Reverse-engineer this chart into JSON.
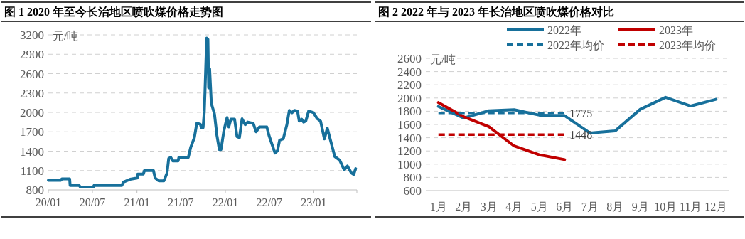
{
  "chart_data": [
    {
      "type": "line",
      "title": "图 1 2020 年至今长治地区喷吹煤价格走势图",
      "ylabel": "元/吨",
      "x": [
        "2020-01-01",
        "2020-02-22",
        "2020-02-26",
        "2020-03-29",
        "2020-03-31",
        "2020-05-07",
        "2020-05-12",
        "2020-07-05",
        "2020-07-08",
        "2020-10-31",
        "2020-11-05",
        "2020-12-04",
        "2021-01-02",
        "2021-01-04",
        "2021-01-27",
        "2021-02-01",
        "2021-03-10",
        "2021-03-17",
        "2021-04-01",
        "2021-04-22",
        "2021-05-05",
        "2021-05-12",
        "2021-05-20",
        "2021-05-29",
        "2021-06-20",
        "2021-06-23",
        "2021-08-01",
        "2021-08-11",
        "2021-08-26",
        "2021-09-05",
        "2021-09-19",
        "2021-09-24",
        "2021-10-01",
        "2021-10-06",
        "2021-10-09",
        "2021-10-16",
        "2021-10-21",
        "2021-10-24",
        "2021-10-28",
        "2021-11-04",
        "2021-11-17",
        "2021-11-27",
        "2021-12-07",
        "2021-12-14",
        "2021-12-26",
        "2022-01-08",
        "2022-01-15",
        "2022-01-24",
        "2022-02-08",
        "2022-02-18",
        "2022-02-28",
        "2022-03-11",
        "2022-03-24",
        "2022-04-03",
        "2022-04-26",
        "2022-05-08",
        "2022-05-22",
        "2022-06-21",
        "2022-06-30",
        "2022-07-13",
        "2022-07-25",
        "2022-08-04",
        "2022-08-13",
        "2022-08-28",
        "2022-09-12",
        "2022-09-22",
        "2022-10-03",
        "2022-10-13",
        "2022-10-26",
        "2022-11-02",
        "2022-11-12",
        "2022-11-20",
        "2022-11-29",
        "2022-12-11",
        "2022-12-31",
        "2023-01-15",
        "2023-01-29",
        "2023-02-14",
        "2023-02-26",
        "2023-03-07",
        "2023-03-29",
        "2023-04-18",
        "2023-05-07",
        "2023-05-20",
        "2023-06-06",
        "2023-06-15",
        "2023-06-23"
      ],
      "series": [
        {
          "color": "#17709b",
          "values": [
            950,
            950,
            970,
            970,
            870,
            870,
            845,
            845,
            870,
            870,
            920,
            965,
            985,
            1045,
            1045,
            1100,
            1100,
            985,
            940,
            940,
            1060,
            1285,
            1305,
            1250,
            1250,
            1305,
            1305,
            1460,
            1610,
            1830,
            1820,
            1765,
            1765,
            2015,
            2345,
            3150,
            3130,
            2380,
            2675,
            2140,
            1975,
            1645,
            1425,
            1425,
            1720,
            1920,
            1775,
            1895,
            1895,
            1625,
            1610,
            1900,
            1810,
            1850,
            1830,
            1700,
            1775,
            1775,
            1645,
            1500,
            1370,
            1405,
            1570,
            1590,
            1810,
            2030,
            1995,
            2030,
            2020,
            1865,
            1895,
            1850,
            1865,
            2020,
            1995,
            1905,
            1865,
            1590,
            1755,
            1625,
            1315,
            1260,
            1110,
            1170,
            1060,
            1040,
            1130
          ]
        }
      ],
      "xlim": [
        "2020-01-01",
        "2023-06-28"
      ],
      "xticks": [
        {
          "value": "2020-01-01",
          "label": "20/01"
        },
        {
          "value": "2020-07-01",
          "label": "20/07"
        },
        {
          "value": "2021-01-01",
          "label": "21/01"
        },
        {
          "value": "2021-07-01",
          "label": "21/07"
        },
        {
          "value": "2022-01-01",
          "label": "22/01"
        },
        {
          "value": "2022-07-01",
          "label": "22/07"
        },
        {
          "value": "2023-01-01",
          "label": "23/01"
        }
      ],
      "ylim": [
        800,
        3200
      ],
      "yticks": [
        800,
        1100,
        1400,
        1700,
        2000,
        2300,
        2600,
        2900,
        3200
      ],
      "grid": "y"
    },
    {
      "type": "line",
      "title": "图 2 2022 年与 2023 年长治地区喷吹煤价格对比",
      "ylabel": "元/吨",
      "categories": [
        "1月",
        "2月",
        "3月",
        "4月",
        "5月",
        "6月",
        "7月",
        "8月",
        "9月",
        "10月",
        "11月",
        "12月"
      ],
      "series": [
        {
          "name": "2022年",
          "color": "#17709b",
          "values": [
            1872,
            1698,
            1807,
            1823,
            1741,
            1734,
            1472,
            1502,
            1830,
            2010,
            1879,
            1980
          ]
        },
        {
          "name": "2023年",
          "color": "#c00000",
          "values": [
            1931,
            1718,
            1567,
            1275,
            1141,
            1069,
            null,
            null,
            null,
            null,
            null,
            null
          ]
        },
        {
          "name": "2022年均价",
          "color": "#17709b",
          "line_style": "dashed",
          "values": [
            1775,
            1775,
            1775,
            1775,
            1775,
            1775,
            null,
            null,
            null,
            null,
            null,
            null
          ],
          "value_labels": [
            null,
            null,
            null,
            null,
            null,
            "1775",
            null,
            null,
            null,
            null,
            null,
            null
          ]
        },
        {
          "name": "2023年均价",
          "color": "#c00000",
          "line_style": "dashed",
          "values": [
            1448,
            1448,
            1448,
            1448,
            1448,
            1448,
            null,
            null,
            null,
            null,
            null,
            null
          ],
          "value_labels": [
            null,
            null,
            null,
            null,
            null,
            "1448",
            null,
            null,
            null,
            null,
            null,
            null
          ]
        }
      ],
      "ylim": [
        600,
        2600
      ],
      "yticks": [
        600,
        800,
        1000,
        1200,
        1400,
        1600,
        1800,
        2000,
        2200,
        2400,
        2600
      ],
      "grid": "y",
      "legend": "top"
    }
  ]
}
